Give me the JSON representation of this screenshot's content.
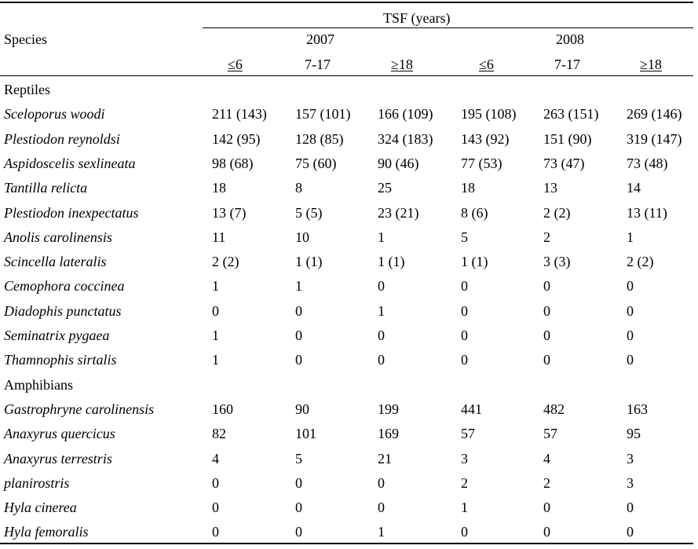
{
  "header": {
    "group_label": "TSF (years)",
    "species_label": "Species",
    "years": [
      "2007",
      "2008"
    ],
    "subcols": [
      "≤6",
      "7-17",
      "≥18",
      "≤6",
      "7-17",
      "≥18"
    ]
  },
  "sections": [
    {
      "title": "Reptiles",
      "rows": [
        {
          "species": "Sceloporus woodi",
          "values": [
            "211 (143)",
            "157 (101)",
            "166 (109)",
            "195 (108)",
            "263 (151)",
            "269 (146)"
          ]
        },
        {
          "species": "Plestiodon reynoldsi",
          "values": [
            "142 (95)",
            "128 (85)",
            "324 (183)",
            "143 (92)",
            "151 (90)",
            "319 (147)"
          ]
        },
        {
          "species": "Aspidoscelis sexlineata",
          "values": [
            "98 (68)",
            "75 (60)",
            "90 (46)",
            "77 (53)",
            "73 (47)",
            "73 (48)"
          ]
        },
        {
          "species": "Tantilla relicta",
          "values": [
            "18",
            "8",
            "25",
            "18",
            "13",
            "14"
          ]
        },
        {
          "species": "Plestiodon inexpectatus",
          "values": [
            "13 (7)",
            "5 (5)",
            "23 (21)",
            "8 (6)",
            "2 (2)",
            "13 (11)"
          ]
        },
        {
          "species": "Anolis carolinensis",
          "values": [
            "11",
            "10",
            "1",
            "5",
            "2",
            "1"
          ]
        },
        {
          "species": "Scincella lateralis",
          "values": [
            "2 (2)",
            "1 (1)",
            "1 (1)",
            "1 (1)",
            "3 (3)",
            "2 (2)"
          ]
        },
        {
          "species": "Cemophora coccinea",
          "values": [
            "1",
            "1",
            "0",
            "0",
            "0",
            "0"
          ]
        },
        {
          "species": "Diadophis punctatus",
          "values": [
            "0",
            "0",
            "1",
            "0",
            "0",
            "0"
          ]
        },
        {
          "species": "Seminatrix pygaea",
          "values": [
            "1",
            "0",
            "0",
            "0",
            "0",
            "0"
          ]
        },
        {
          "species": "Thamnophis sirtalis",
          "values": [
            "1",
            "0",
            "0",
            "0",
            "0",
            "0"
          ]
        }
      ]
    },
    {
      "title": "Amphibians",
      "rows": [
        {
          "species": "Gastrophryne carolinensis",
          "values": [
            "160",
            "90",
            "199",
            "441",
            "482",
            "163"
          ]
        },
        {
          "species": "Anaxyrus quercicus",
          "values": [
            "82",
            "101",
            "169",
            "57",
            "57",
            "95"
          ]
        },
        {
          "species": "Anaxyrus terrestris",
          "values": [
            "4",
            "5",
            "21",
            "3",
            "4",
            "3"
          ]
        },
        {
          "species": "planirostris",
          "values": [
            "0",
            "0",
            "0",
            "2",
            "2",
            "3"
          ]
        },
        {
          "species": "Hyla cinerea",
          "values": [
            "0",
            "0",
            "0",
            "1",
            "0",
            "0"
          ]
        },
        {
          "species": "Hyla femoralis",
          "values": [
            "0",
            "0",
            "1",
            "0",
            "0",
            "0"
          ]
        }
      ]
    }
  ]
}
